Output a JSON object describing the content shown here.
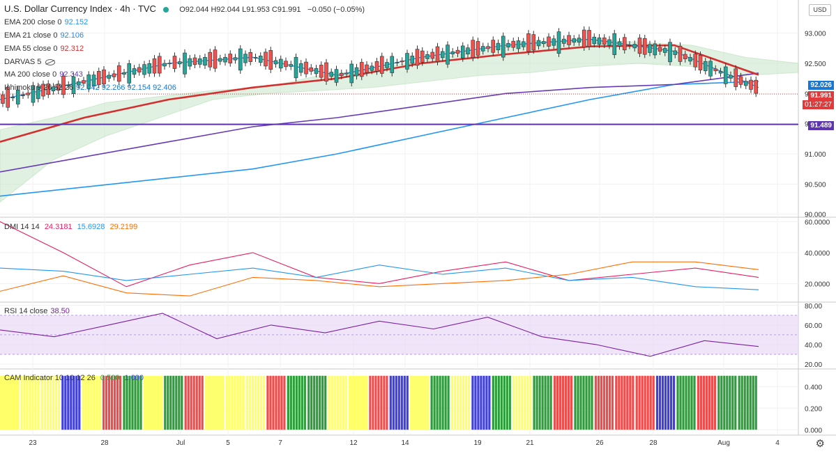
{
  "header": {
    "symbol": "U.S. Dollar Currency Index · 4h · TVC",
    "ohlc_prefix": "O92.044 H92.044 L91.953 C91.991",
    "change": "−0.050 (−0.05%)",
    "currency": "USD"
  },
  "indicators": [
    {
      "label": "EMA 200 close 0",
      "value": "92.152",
      "color": "#2196f3"
    },
    {
      "label": "EMA 21 close 0",
      "value": "92.106",
      "color": "#1e88e5"
    },
    {
      "label": "EMA 55 close 0",
      "value": "92.312",
      "color": "#d32f2f"
    },
    {
      "label": "DARVAS 5",
      "value": "",
      "color": "#333333"
    },
    {
      "label": "MA 200 close 0",
      "value": "92.343",
      "color": "#673ab7"
    },
    {
      "label": "Ichimoku 9 26 52 26",
      "value": "92.042  92.266  92.154  92.406",
      "color": "#1976d2"
    }
  ],
  "panes": {
    "dmi": {
      "label": "DMI 14 14",
      "values": [
        "24.3181",
        "15.6928",
        "29.2199"
      ],
      "colors": [
        "#e91e63",
        "#2196f3",
        "#ff6d00"
      ]
    },
    "rsi": {
      "label": "RSI 14 close",
      "value": "38.50",
      "color": "#7b1fa2"
    },
    "cam": {
      "label": "CAM Indicator 10 10 12 26",
      "values": [
        "0.500",
        "1.000"
      ]
    }
  },
  "price_tags": {
    "ichimoku": "92.026",
    "last": "91.991",
    "countdown": "01:27:27",
    "support": "91.489"
  },
  "chart_data": {
    "type": "line",
    "title": "U.S. Dollar Currency Index · 4h · TVC",
    "x_ticks": [
      "23",
      "28",
      "Jul",
      "5",
      "7",
      "12",
      "14",
      "19",
      "21",
      "26",
      "28",
      "Aug",
      "4"
    ],
    "main_axis": {
      "ticks": [
        "93.000",
        "92.500",
        "92.000",
        "91.500",
        "91.000",
        "90.500",
        "90.000"
      ],
      "ylim": [
        89.95,
        93.55
      ]
    },
    "dmi_axis": {
      "ticks": [
        "60.0000",
        "40.0000",
        "20.0000"
      ],
      "ylim": [
        8,
        62
      ]
    },
    "rsi_axis": {
      "ticks": [
        "80.00",
        "60.00",
        "40.00",
        "20.00"
      ],
      "ylim": [
        15,
        82
      ],
      "band": [
        30,
        70
      ]
    },
    "cam_axis": {
      "ticks": [
        "0.400",
        "0.200",
        "0.000"
      ],
      "ylim": [
        -0.05,
        0.55
      ]
    },
    "horizontal_line": 91.489,
    "series": [
      {
        "name": "EMA 200",
        "color": "#2196f3",
        "values": [
          90.3,
          90.45,
          90.6,
          90.75,
          91.0,
          91.3,
          91.6,
          91.9,
          92.15,
          92.2
        ]
      },
      {
        "name": "MA 200",
        "color": "#673ab7",
        "values": [
          90.7,
          90.95,
          91.2,
          91.45,
          91.6,
          91.8,
          92.0,
          92.1,
          92.15,
          92.34
        ]
      },
      {
        "name": "EMA 55",
        "color": "#d32f2f",
        "values": [
          91.2,
          91.6,
          91.9,
          92.1,
          92.25,
          92.5,
          92.65,
          92.78,
          92.8,
          92.31
        ]
      },
      {
        "name": "EMA 21",
        "color": "#1e88e5",
        "values": [
          91.9,
          92.2,
          92.5,
          92.6,
          92.3,
          92.6,
          92.8,
          92.9,
          92.7,
          92.1
        ]
      },
      {
        "name": "DMI",
        "color": "#e91e63",
        "values": [
          60,
          40,
          18,
          32,
          40,
          24,
          20,
          28,
          34,
          22,
          26,
          30,
          24
        ]
      },
      {
        "name": "DMI",
        "color": "#2196f3",
        "values": [
          30,
          28,
          22,
          26,
          30,
          24,
          32,
          26,
          30,
          22,
          24,
          18,
          16
        ]
      },
      {
        "name": "DMI",
        "color": "#ff6d00",
        "values": [
          15,
          25,
          14,
          12,
          24,
          22,
          18,
          20,
          22,
          26,
          34,
          34,
          29
        ]
      },
      {
        "name": "RSI",
        "color": "#7b1fa2",
        "values": [
          55,
          48,
          60,
          72,
          46,
          60,
          52,
          64,
          56,
          68,
          48,
          40,
          28,
          44,
          38
        ]
      }
    ],
    "cam_colors": {
      "yellow": "#ffff66",
      "green": "#2e9c3a",
      "red": "#f24b4b",
      "blue": "#4040e0"
    }
  }
}
